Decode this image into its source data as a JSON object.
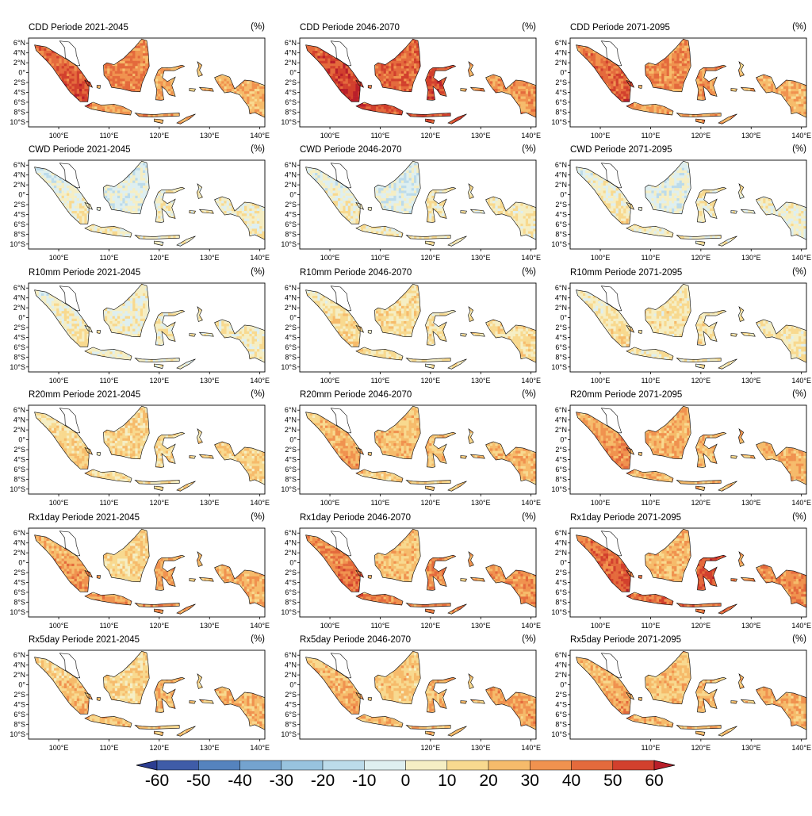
{
  "rows": [
    {
      "index": "CDD",
      "unit": "(%)"
    },
    {
      "index": "CWD",
      "unit": "(%)"
    },
    {
      "index": "R10mm",
      "unit": "(%)"
    },
    {
      "index": "R20mm",
      "unit": "(%)"
    },
    {
      "index": "Rx1day",
      "unit": "(%)"
    },
    {
      "index": "Rx5day",
      "unit": "(%)"
    }
  ],
  "periods": [
    "Periode 2021-2045",
    "Periode 2046-2070",
    "Periode 2071-2095"
  ],
  "panel_titles": [
    [
      "CDD Periode 2021-2045",
      "CDD Periode 2046-2070",
      "CDD Periode 2071-2095"
    ],
    [
      "CWD Periode 2021-2045",
      "CWD Periode 2046-2070",
      "CWD Periode 2071-2095"
    ],
    [
      "R10mm Periode 2021-2045",
      "R10mm Periode 2046-2070",
      "R10mm Periode 2071-2095"
    ],
    [
      "R20mm Periode 2021-2045",
      "R20mm Periode 2046-2070",
      "R20mm Periode 2071-2095"
    ],
    [
      "Rx1day Periode 2021-2045",
      "Rx1day Periode 2046-2070",
      "Rx1day Periode 2071-2095"
    ],
    [
      "Rx5day Periode 2021-2045",
      "Rx5day Periode 2046-2070",
      "Rx5day Periode 2071-2095"
    ]
  ],
  "map": {
    "lon_range": [
      94,
      141
    ],
    "lat_range": [
      -11,
      7
    ],
    "lat_ticks": [
      "6°N",
      "4°N",
      "2°N",
      "0°",
      "2°S",
      "4°S",
      "6°S",
      "8°S",
      "10°S"
    ],
    "lat_tick_values": [
      6,
      4,
      2,
      0,
      -2,
      -4,
      -6,
      -8,
      -10
    ],
    "lon_ticks": [
      "100°E",
      "110°E",
      "120°E",
      "130°E",
      "140°E"
    ],
    "lon_tick_values": [
      100,
      110,
      120,
      130,
      140
    ],
    "bottom_row_lon_ticks": [
      [
        "100°E",
        "110°E",
        "120°E",
        "130°E",
        "140°E"
      ],
      [
        "120°E",
        "130°E",
        "140°E"
      ],
      [
        "110°E",
        "120°E",
        "130°E",
        "140°E"
      ]
    ],
    "bottom_row_lon_values": [
      [
        100,
        110,
        120,
        130,
        140
      ],
      [
        120,
        130,
        140
      ],
      [
        110,
        120,
        130,
        140
      ]
    ]
  },
  "intensity": [
    [
      {
        "base": 22,
        "sumatra": 48,
        "kalimantan": 38,
        "sulawesi": 28,
        "papua": 26,
        "java": 30
      },
      {
        "base": 30,
        "sumatra": 55,
        "kalimantan": 45,
        "sulawesi": 52,
        "papua": 34,
        "java": 50
      },
      {
        "base": 24,
        "sumatra": 45,
        "kalimantan": 36,
        "sulawesi": 34,
        "papua": 26,
        "java": 30
      }
    ],
    [
      {
        "base": 4,
        "sumatra": 2,
        "kalimantan": -4,
        "sulawesi": 6,
        "papua": 5,
        "java": 6
      },
      {
        "base": 4,
        "sumatra": 2,
        "kalimantan": -4,
        "sulawesi": 8,
        "papua": 8,
        "java": 6
      },
      {
        "base": 5,
        "sumatra": 5,
        "kalimantan": -2,
        "sulawesi": 8,
        "papua": 3,
        "java": 6
      }
    ],
    [
      {
        "base": 6,
        "sumatra": 6,
        "kalimantan": 4,
        "sulawesi": 6,
        "papua": 6,
        "java": 4
      },
      {
        "base": 10,
        "sumatra": 12,
        "kalimantan": 12,
        "sulawesi": 10,
        "papua": 12,
        "java": 10
      },
      {
        "base": 8,
        "sumatra": 10,
        "kalimantan": 10,
        "sulawesi": 10,
        "papua": 8,
        "java": 8
      }
    ],
    [
      {
        "base": 14,
        "sumatra": 16,
        "kalimantan": 16,
        "sulawesi": 16,
        "papua": 18,
        "java": 12
      },
      {
        "base": 20,
        "sumatra": 26,
        "kalimantan": 22,
        "sulawesi": 22,
        "papua": 26,
        "java": 18
      },
      {
        "base": 24,
        "sumatra": 34,
        "kalimantan": 28,
        "sulawesi": 24,
        "papua": 28,
        "java": 24
      }
    ],
    [
      {
        "base": 22,
        "sumatra": 32,
        "kalimantan": 16,
        "sulawesi": 30,
        "papua": 28,
        "java": 34
      },
      {
        "base": 28,
        "sumatra": 40,
        "kalimantan": 22,
        "sulawesi": 38,
        "papua": 34,
        "java": 38
      },
      {
        "base": 32,
        "sumatra": 46,
        "kalimantan": 24,
        "sulawesi": 50,
        "papua": 36,
        "java": 42
      }
    ],
    [
      {
        "base": 20,
        "sumatra": 22,
        "kalimantan": 16,
        "sulawesi": 26,
        "papua": 26,
        "java": 22
      },
      {
        "base": 22,
        "sumatra": 26,
        "kalimantan": 20,
        "sulawesi": 26,
        "papua": 30,
        "java": 24
      },
      {
        "base": 22,
        "sumatra": 28,
        "kalimantan": 22,
        "sulawesi": 26,
        "papua": 28,
        "java": 24
      }
    ]
  ],
  "colorbar": {
    "labels": [
      "-60",
      "-50",
      "-40",
      "-30",
      "-20",
      "-10",
      "0",
      "10",
      "20",
      "30",
      "40",
      "50",
      "60"
    ],
    "colors": [
      "#2c3d91",
      "#3f5ca8",
      "#5583be",
      "#74a3cf",
      "#98c3de",
      "#bcdbea",
      "#deeff0",
      "#f5eec4",
      "#f8d98f",
      "#f6bb6b",
      "#f0924f",
      "#e46a3c",
      "#d2402d",
      "#b91f2a"
    ],
    "colors_order": "one color per interval from below -60 to above 60"
  }
}
